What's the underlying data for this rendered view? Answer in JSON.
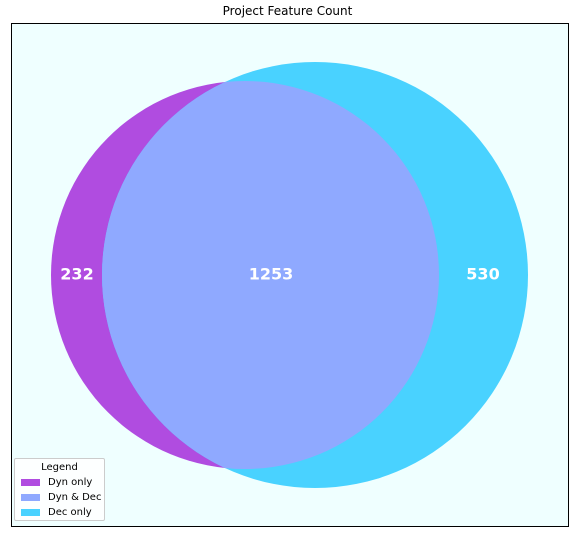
{
  "title": "Project Feature Count",
  "chart_data": {
    "type": "venn",
    "sets": [
      "Dyn",
      "Dec"
    ],
    "regions": [
      {
        "key": "dyn_only",
        "label": "Dyn only",
        "value": 232,
        "color": "#b04ce0"
      },
      {
        "key": "both",
        "label": "Dyn & Dec",
        "value": 1253,
        "color": "#8fa9ff"
      },
      {
        "key": "dec_only",
        "label": "Dec only",
        "value": 530,
        "color": "#49d2ff"
      }
    ],
    "background_color": "#efffff",
    "label_color": "#ffffff"
  },
  "legend": {
    "title": "Legend",
    "placement": "bottom-left",
    "items": [
      {
        "label": "Dyn only",
        "color": "#b04ce0"
      },
      {
        "label": "Dyn & Dec",
        "color": "#8fa9ff"
      },
      {
        "label": "Dec only",
        "color": "#49d2ff"
      }
    ]
  }
}
